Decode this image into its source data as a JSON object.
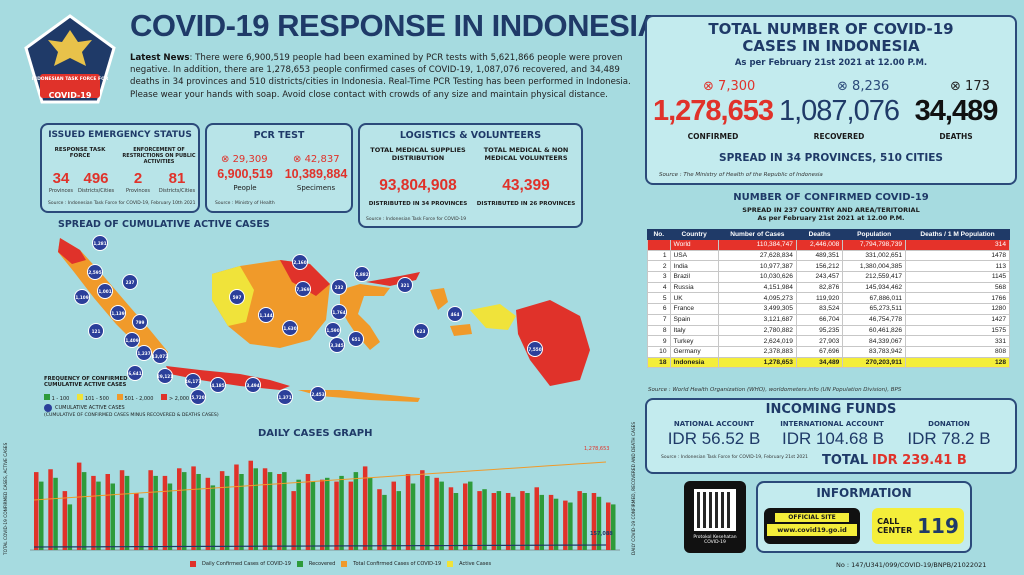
{
  "header": {
    "title": "COVID-19 RESPONSE IN INDONESIA",
    "logo_lines": [
      "INDONESIAN TASK FORCE FOR",
      "COVID-19"
    ],
    "news_label": "Latest News",
    "news_text": ": There were 6,900,519 people had been examined by PCR tests with 5,621,866 people were proven negative. In addition, there are 1,278,653 people confirmed cases of COVID-19, 1,087,076 recovered, and 34,489 deaths in 34 provinces and 510 districts/cities in Indonesia. Real-Time PCR Testing has been performed in Indonesia. Please wear your hands with soap. Avoid close contact with crowds of any size and maintain physical distance."
  },
  "emergency": {
    "title": "ISSUED EMERGENCY STATUS",
    "col1_title": "RESPONSE TASK FORCE",
    "col2_title": "ENFORCEMENT OF RESTRICTIONS ON PUBLIC ACTIVITIES",
    "provinces_1": "34",
    "districts_1": "496",
    "provinces_2": "2",
    "districts_2": "81",
    "provinces_label": "Provinces",
    "districts_label": "Districts/Cities",
    "source": "Source : Indonesian Task Force for COVID-19, February 10th 2021"
  },
  "pcr": {
    "title": "PCR TEST",
    "people_inc": "29,309",
    "specimens_inc": "42,837",
    "people": "6,900,519",
    "specimens": "10,389,884",
    "people_label": "People",
    "specimens_label": "Specimens",
    "source": "Source : Ministry of Health"
  },
  "logistics": {
    "title": "LOGISTICS & VOLUNTEERS",
    "col1_title": "TOTAL MEDICAL SUPPLIES DISTRIBUTION",
    "col2_title": "TOTAL MEDICAL & NON MEDICAL VOLUNTEERS",
    "supplies": "93,804,908",
    "volunteers": "43,399",
    "supplies_note": "DISTRIBUTED IN 34 PROVINCES",
    "volunteers_note": "DISTRIBUTED IN 26 PROVINCES",
    "source": "Source : Indonesian Task Force for COVID-19"
  },
  "map": {
    "title": "SPREAD OF CUMULATIVE ACTIVE CASES",
    "legend_title": "FREQUENCY OF CONFIRMED CUMULATIVE ACTIVE CASES",
    "legend_items": [
      "1 - 100",
      "101 - 500",
      "501 - 2,000",
      "> 2,000"
    ],
    "legend_colors": [
      "#2e9b3a",
      "#f0e33a",
      "#f09a2a",
      "#e0322a"
    ],
    "circle_legend": "CUMULATIVE ACTIVE CASES",
    "circle_note": "(CUMULATIVE OF CONFIRMED CASES MINUS RECOVERED & DEATHS CASES)",
    "bubbles": [
      "1,281",
      "2,595",
      "1,109",
      "1,001",
      "237",
      "1,139",
      "121",
      "799",
      "1,409",
      "1,237",
      "6,641",
      "13,072",
      "29,121",
      "5,720",
      "46,177",
      "4,185",
      "3,494",
      "1,371",
      "2,453",
      "2,160",
      "597",
      "1,144",
      "7,369",
      "1,630",
      "232",
      "2,882",
      "1,764",
      "1,590",
      "3,345",
      "651",
      "321",
      "623",
      "464",
      "7,550"
    ]
  },
  "daily": {
    "title": "DAILY CASES GRAPH",
    "y_left": "TOTAL COVID-19 CONFIRMED CASES, ACTIVE CASES",
    "y_right": "DAILY COVID-19 CONFIRMED, RECOVERED AND DEATH CASES",
    "total_label": "1,278,653",
    "active_label": "157,088",
    "legend": [
      "Daily Confirmed Cases of COVID-19",
      "Recovered",
      "Total Confirmed Cases of COVID-19",
      "Active Cases"
    ]
  },
  "totals": {
    "title": "TOTAL NUMBER OF COVID-19 CASES IN INDONESIA",
    "as_of": "As per February 21st 2021 at 12.00 P.M.",
    "confirmed_inc": "7,300",
    "recovered_inc": "8,236",
    "deaths_inc": "173",
    "confirmed": "1,278,653",
    "recovered": "1,087,076",
    "deaths": "34,489",
    "confirmed_label": "CONFIRMED",
    "recovered_label": "RECOVERED",
    "deaths_label": "DEATHS",
    "spread": "SPREAD IN 34 PROVINCES, 510 CITIES",
    "source": "Source : The Ministry of Health of the Republic of Indonesia"
  },
  "world": {
    "title": "NUMBER OF CONFIRMED COVID-19",
    "subtitle": "SPREAD IN 237 COUNTRY AND AREA/TERITORIAL",
    "as_of": "As per February 21st 2021 at 12.00 P.M.",
    "headers": [
      "No.",
      "Country",
      "Number of Cases",
      "Deaths",
      "Population",
      "Deaths / 1 M Population"
    ],
    "rows": [
      [
        "",
        "World",
        "110,384,747",
        "2,446,008",
        "7,794,798,739",
        "314"
      ],
      [
        "1",
        "USA",
        "27,628,834",
        "489,351",
        "331,002,651",
        "1478"
      ],
      [
        "2",
        "India",
        "10,977,387",
        "156,212",
        "1,380,004,385",
        "113"
      ],
      [
        "3",
        "Brazil",
        "10,030,626",
        "243,457",
        "212,559,417",
        "1145"
      ],
      [
        "4",
        "Russia",
        "4,151,984",
        "82,876",
        "145,934,462",
        "568"
      ],
      [
        "5",
        "UK",
        "4,095,273",
        "119,920",
        "67,886,011",
        "1766"
      ],
      [
        "6",
        "France",
        "3,499,305",
        "83,524",
        "65,273,511",
        "1280"
      ],
      [
        "7",
        "Spain",
        "3,121,687",
        "66,704",
        "46,754,778",
        "1427"
      ],
      [
        "8",
        "Italy",
        "2,780,882",
        "95,235",
        "60,461,826",
        "1575"
      ],
      [
        "9",
        "Turkey",
        "2,624,019",
        "27,903",
        "84,339,067",
        "331"
      ],
      [
        "10",
        "Germany",
        "2,378,883",
        "67,696",
        "83,783,942",
        "808"
      ],
      [
        "18",
        "Indonesia",
        "1,278,653",
        "34,489",
        "270,203,911",
        "128"
      ]
    ],
    "source": "Source : World Health Organization (WHO), worldometers.info (UN Population Division), BPS"
  },
  "funds": {
    "title": "INCOMING FUNDS",
    "national_label": "NATIONAL ACCOUNT",
    "national": "IDR 56.52 B",
    "international_label": "INTERNATIONAL ACCOUNT",
    "international": "IDR 104.68 B",
    "donation_label": "DONATION",
    "donation": "IDR 78.2 B",
    "total_label": "TOTAL",
    "total": "IDR 239.41 B",
    "source": "Source : Indonesian Task Force for COVID-19, February 21st 2021"
  },
  "info": {
    "qr_caption": "Protokol Kesehatan COVID-19",
    "title": "INFORMATION",
    "official_label": "OFFICIAL SITE",
    "official_url": "www.covid19.go.id",
    "call_label": "CALL CENTER",
    "call_number": "119"
  },
  "footer": {
    "doc_no": "No : 147/U341/099/COVID-19/BNPB/21022021"
  }
}
